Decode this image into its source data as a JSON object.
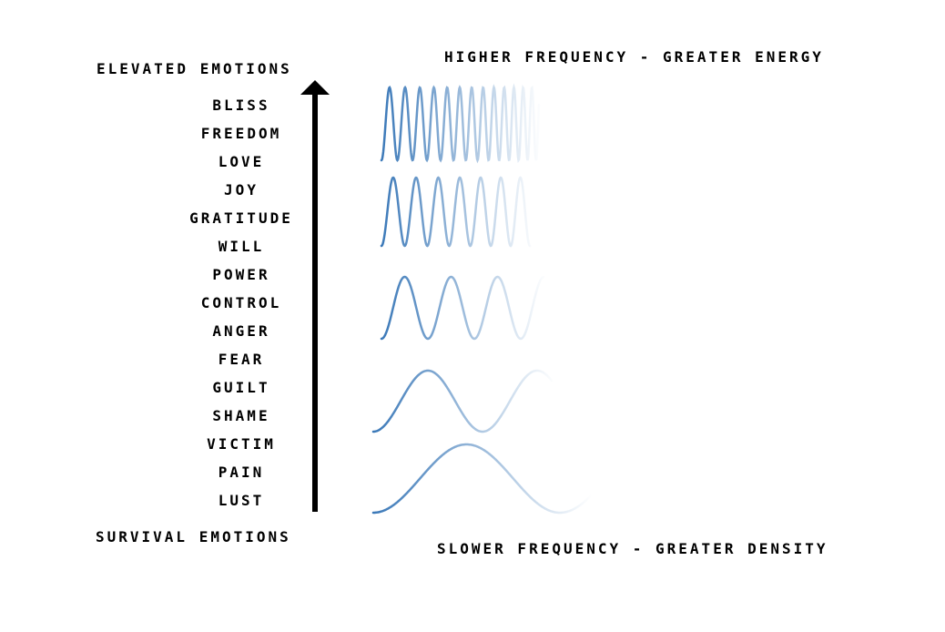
{
  "labels": {
    "top_left": "ELEVATED EMOTIONS",
    "bottom_left": "SURVIVAL EMOTIONS",
    "top_right": "HIGHER FREQUENCY - GREATER ENERGY",
    "bottom_right": "SLOWER FREQUENCY - GREATER DENSITY"
  },
  "emotions": [
    "BLISS",
    "FREEDOM",
    "LOVE",
    "JOY",
    "GRATITUDE",
    "WILL",
    "POWER",
    "CONTROL",
    "ANGER",
    "FEAR",
    "GUILT",
    "SHAME",
    "VICTIM",
    "PAIN",
    "LUST"
  ],
  "wave_color": "#3a78b8",
  "arrow_color": "#000000"
}
